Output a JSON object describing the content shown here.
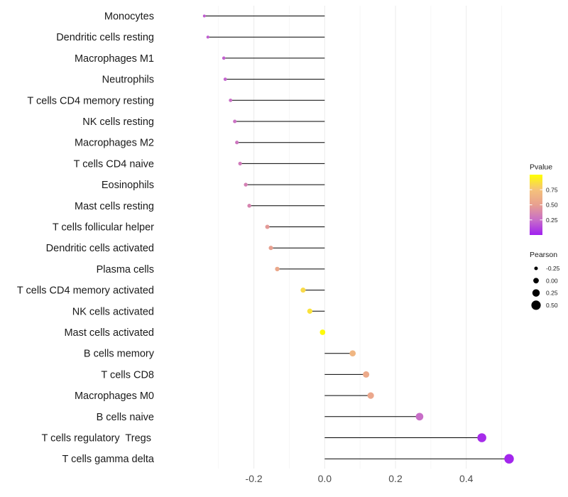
{
  "chart_data": {
    "type": "lollipop",
    "title": "",
    "xlabel": "",
    "ylabel": "",
    "xlim": [
      -0.46,
      0.535
    ],
    "xticks": [
      -0.2,
      0.0,
      0.2,
      0.4
    ],
    "xtick_labels": [
      "-0.2",
      "0.0",
      "0.2",
      "0.4"
    ],
    "grid": true,
    "series": [
      {
        "label": "Monocytes",
        "pearson": -0.34,
        "pvalue": 0.2
      },
      {
        "label": "Dendritic cells resting",
        "pearson": -0.33,
        "pvalue": 0.2
      },
      {
        "label": "Macrophages M1",
        "pearson": -0.285,
        "pvalue": 0.21
      },
      {
        "label": "Neutrophils",
        "pearson": -0.281,
        "pvalue": 0.22
      },
      {
        "label": "T cells CD4 memory resting",
        "pearson": -0.266,
        "pvalue": 0.26
      },
      {
        "label": "NK cells resting",
        "pearson": -0.254,
        "pvalue": 0.27
      },
      {
        "label": "Macrophages M2",
        "pearson": -0.248,
        "pvalue": 0.29
      },
      {
        "label": "T cells CD4 naive",
        "pearson": -0.239,
        "pvalue": 0.31
      },
      {
        "label": "Eosinophils",
        "pearson": -0.223,
        "pvalue": 0.34
      },
      {
        "label": "Mast cells resting",
        "pearson": -0.213,
        "pvalue": 0.36
      },
      {
        "label": "T cells follicular helper",
        "pearson": -0.162,
        "pvalue": 0.47
      },
      {
        "label": "Dendritic cells activated",
        "pearson": -0.152,
        "pvalue": 0.5
      },
      {
        "label": "Plasma cells",
        "pearson": -0.134,
        "pvalue": 0.56
      },
      {
        "label": "T cells CD4 memory activated",
        "pearson": -0.061,
        "pvalue": 0.85
      },
      {
        "label": "NK cells activated",
        "pearson": -0.042,
        "pvalue": 0.88
      },
      {
        "label": "Mast cells activated",
        "pearson": -0.006,
        "pvalue": 0.98
      },
      {
        "label": "B cells memory",
        "pearson": 0.079,
        "pvalue": 0.66
      },
      {
        "label": "T cells CD8",
        "pearson": 0.117,
        "pvalue": 0.57
      },
      {
        "label": "Macrophages M0",
        "pearson": 0.13,
        "pvalue": 0.55
      },
      {
        "label": "B cells naive",
        "pearson": 0.268,
        "pvalue": 0.25
      },
      {
        "label": "T cells regulatory  Tregs ",
        "pearson": 0.444,
        "pvalue": 0.04
      },
      {
        "label": "T cells gamma delta",
        "pearson": 0.521,
        "pvalue": 0.02
      }
    ],
    "legend_pvalue": {
      "title": "Pvalue",
      "range": [
        0.0,
        1.0
      ],
      "ticks": [
        0.75,
        0.5,
        0.25
      ],
      "tick_labels": [
        "0.75",
        "0.50",
        "0.25"
      ],
      "colors": [
        "#a020f0",
        "#c86ec8",
        "#e8a090",
        "#f5c27a",
        "#ffff00"
      ]
    },
    "legend_pearson": {
      "title": "Pearson",
      "values": [
        -0.25,
        0.0,
        0.25,
        0.5
      ],
      "labels": [
        "-0.25",
        "0.00",
        "0.25",
        "0.50"
      ]
    }
  }
}
